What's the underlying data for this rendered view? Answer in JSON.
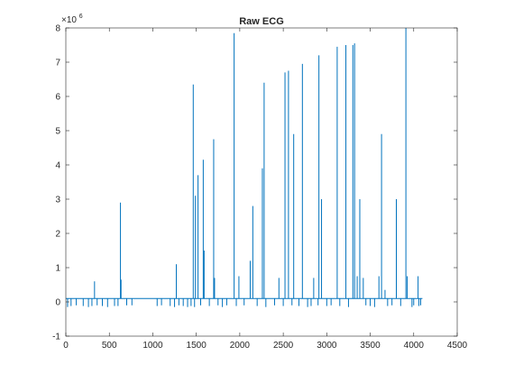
{
  "chart_data": {
    "type": "line",
    "title": "Raw ECG",
    "xlabel": "",
    "ylabel": "",
    "exponent_label": "×10",
    "exponent_power": "6",
    "xlim": [
      0,
      4500
    ],
    "ylim": [
      -1,
      8
    ],
    "x_ticks": [
      0,
      500,
      1000,
      1500,
      2000,
      2500,
      3000,
      3500,
      4000,
      4500
    ],
    "y_ticks": [
      -1,
      0,
      1,
      2,
      3,
      4,
      5,
      6,
      7,
      8
    ],
    "grid": false,
    "legend": "none",
    "series_color": "#0072BD",
    "baseline": 0.1,
    "n_samples": 4100,
    "spikes": [
      [
        330,
        0.6
      ],
      [
        628,
        2.9
      ],
      [
        635,
        0.65
      ],
      [
        1270,
        1.1
      ],
      [
        1465,
        6.35
      ],
      [
        1490,
        3.1
      ],
      [
        1520,
        3.7
      ],
      [
        1580,
        4.15
      ],
      [
        1590,
        1.5
      ],
      [
        1700,
        4.75
      ],
      [
        1710,
        0.7
      ],
      [
        1935,
        7.85
      ],
      [
        1990,
        0.75
      ],
      [
        2120,
        1.2
      ],
      [
        2150,
        2.8
      ],
      [
        2260,
        3.9
      ],
      [
        2280,
        6.4
      ],
      [
        2450,
        0.7
      ],
      [
        2520,
        6.7
      ],
      [
        2560,
        6.75
      ],
      [
        2620,
        4.9
      ],
      [
        2720,
        6.95
      ],
      [
        2850,
        0.7
      ],
      [
        2910,
        7.2
      ],
      [
        2940,
        3.0
      ],
      [
        3120,
        7.45
      ],
      [
        3220,
        7.5
      ],
      [
        3300,
        7.5
      ],
      [
        3320,
        7.55
      ],
      [
        3350,
        0.75
      ],
      [
        3380,
        3.0
      ],
      [
        3420,
        0.7
      ],
      [
        3600,
        0.75
      ],
      [
        3630,
        4.9
      ],
      [
        3670,
        0.35
      ],
      [
        3800,
        3.0
      ],
      [
        3910,
        8.0
      ],
      [
        3925,
        0.75
      ],
      [
        4050,
        0.75
      ]
    ],
    "dips": [
      [
        20,
        -0.15
      ],
      [
        60,
        -0.12
      ],
      [
        120,
        -0.1
      ],
      [
        200,
        -0.12
      ],
      [
        260,
        -0.15
      ],
      [
        300,
        -0.12
      ],
      [
        360,
        -0.1
      ],
      [
        420,
        -0.12
      ],
      [
        480,
        -0.15
      ],
      [
        560,
        -0.12
      ],
      [
        600,
        -0.12
      ],
      [
        700,
        -0.1
      ],
      [
        760,
        -0.1
      ],
      [
        1050,
        -0.12
      ],
      [
        1100,
        -0.1
      ],
      [
        1200,
        -0.12
      ],
      [
        1250,
        -0.15
      ],
      [
        1300,
        -0.1
      ],
      [
        1350,
        -0.12
      ],
      [
        1400,
        -0.15
      ],
      [
        1440,
        -0.12
      ],
      [
        1480,
        -0.15
      ],
      [
        1550,
        -0.1
      ],
      [
        1650,
        -0.12
      ],
      [
        1750,
        -0.1
      ],
      [
        1800,
        -0.15
      ],
      [
        1850,
        -0.1
      ],
      [
        1960,
        -0.12
      ],
      [
        2050,
        -0.1
      ],
      [
        2200,
        -0.12
      ],
      [
        2300,
        -0.15
      ],
      [
        2400,
        -0.1
      ],
      [
        2500,
        -0.12
      ],
      [
        2600,
        -0.1
      ],
      [
        2680,
        -0.12
      ],
      [
        2780,
        -0.15
      ],
      [
        2820,
        -0.12
      ],
      [
        2900,
        -0.1
      ],
      [
        3000,
        -0.12
      ],
      [
        3050,
        -0.1
      ],
      [
        3150,
        -0.12
      ],
      [
        3250,
        -0.15
      ],
      [
        3450,
        -0.1
      ],
      [
        3500,
        -0.12
      ],
      [
        3550,
        -0.15
      ],
      [
        3700,
        -0.12
      ],
      [
        3750,
        -0.1
      ],
      [
        3850,
        -0.12
      ],
      [
        3980,
        -0.15
      ],
      [
        4000,
        -0.1
      ],
      [
        4060,
        -0.12
      ],
      [
        4080,
        -0.1
      ]
    ]
  }
}
